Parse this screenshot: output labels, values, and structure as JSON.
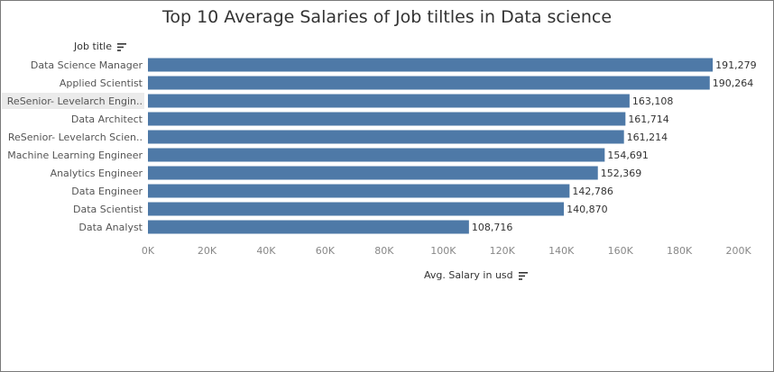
{
  "chart_data": {
    "type": "bar",
    "orientation": "horizontal",
    "title": "Top 10 Average Salaries of Job tiltles in Data science",
    "row_header": "Job title",
    "xlabel": "Avg. Salary in usd",
    "categories": [
      "Data Science Manager",
      "Applied Scientist",
      "ReSenior- Levelarch Engin..",
      "Data Architect",
      "ReSenior- Levelarch Scien..",
      "Machine Learning Engineer",
      "Analytics Engineer",
      "Data Engineer",
      "Data Scientist",
      "Data Analyst"
    ],
    "values": [
      191279,
      190264,
      163108,
      161714,
      161214,
      154691,
      152369,
      142786,
      140870,
      108716
    ],
    "value_labels": [
      "191,279",
      "190,264",
      "163,108",
      "161,714",
      "161,214",
      "154,691",
      "152,369",
      "142,786",
      "140,870",
      "108,716"
    ],
    "xticks": [
      0,
      20000,
      40000,
      60000,
      80000,
      100000,
      120000,
      140000,
      160000,
      180000,
      200000
    ],
    "xtick_labels": [
      "0K",
      "20K",
      "40K",
      "60K",
      "80K",
      "100K",
      "120K",
      "140K",
      "160K",
      "180K",
      "200K"
    ],
    "xlim": [
      0,
      205000
    ],
    "grid": false,
    "legend": "none",
    "colors": {
      "bar": "#4e79a7",
      "highlight_row": "#ebebeb"
    },
    "highlighted_category": "ReSenior- Levelarch Engin.."
  },
  "icons": {
    "sort": "sort-descending-icon"
  }
}
